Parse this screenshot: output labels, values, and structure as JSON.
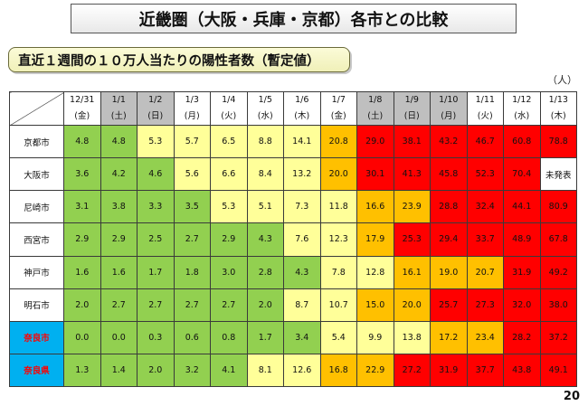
{
  "title": "近畿圏（大阪・兵庫・京都）各市との比較",
  "subtitle": "直近１週間の１０万人当たりの陽性者数（暫定値）",
  "unit": "（人）",
  "page_number": "20",
  "colors": {
    "green": "#92d050",
    "light_yellow": "#ffff99",
    "orange": "#ffc000",
    "red": "#ff0000",
    "nara_bg": "#00b0f0",
    "header_grey": "#bfbfbf"
  },
  "dates": [
    {
      "date": "12/31",
      "day": "(金)",
      "shade": "white"
    },
    {
      "date": "1/1",
      "day": "(土)",
      "shade": "grey"
    },
    {
      "date": "1/2",
      "day": "(日)",
      "shade": "grey"
    },
    {
      "date": "1/3",
      "day": "(月)",
      "shade": "white"
    },
    {
      "date": "1/4",
      "day": "(火)",
      "shade": "white"
    },
    {
      "date": "1/5",
      "day": "(水)",
      "shade": "white"
    },
    {
      "date": "1/6",
      "day": "(木)",
      "shade": "white"
    },
    {
      "date": "1/7",
      "day": "(金)",
      "shade": "white"
    },
    {
      "date": "1/8",
      "day": "(土)",
      "shade": "grey"
    },
    {
      "date": "1/9",
      "day": "(日)",
      "shade": "grey"
    },
    {
      "date": "1/10",
      "day": "(月)",
      "shade": "grey"
    },
    {
      "date": "1/11",
      "day": "(火)",
      "shade": "white"
    },
    {
      "date": "1/12",
      "day": "(水)",
      "shade": "white"
    },
    {
      "date": "1/13",
      "day": "(木)",
      "shade": "white"
    }
  ],
  "rows": [
    {
      "city": "京都市",
      "nara": false,
      "cells": [
        {
          "v": "4.8",
          "c": "g"
        },
        {
          "v": "4.8",
          "c": "g"
        },
        {
          "v": "5.3",
          "c": "y"
        },
        {
          "v": "5.7",
          "c": "y"
        },
        {
          "v": "6.5",
          "c": "y"
        },
        {
          "v": "8.8",
          "c": "y"
        },
        {
          "v": "14.1",
          "c": "y"
        },
        {
          "v": "20.8",
          "c": "o"
        },
        {
          "v": "29.0",
          "c": "r"
        },
        {
          "v": "38.1",
          "c": "r"
        },
        {
          "v": "43.2",
          "c": "r"
        },
        {
          "v": "46.7",
          "c": "r"
        },
        {
          "v": "60.8",
          "c": "r"
        },
        {
          "v": "78.8",
          "c": "r"
        }
      ]
    },
    {
      "city": "大阪市",
      "nara": false,
      "cells": [
        {
          "v": "3.6",
          "c": "g"
        },
        {
          "v": "4.2",
          "c": "g"
        },
        {
          "v": "4.6",
          "c": "g"
        },
        {
          "v": "5.6",
          "c": "y"
        },
        {
          "v": "6.6",
          "c": "y"
        },
        {
          "v": "8.4",
          "c": "y"
        },
        {
          "v": "13.2",
          "c": "y"
        },
        {
          "v": "20.0",
          "c": "o"
        },
        {
          "v": "30.1",
          "c": "r"
        },
        {
          "v": "41.3",
          "c": "r"
        },
        {
          "v": "45.8",
          "c": "r"
        },
        {
          "v": "52.3",
          "c": "r"
        },
        {
          "v": "70.4",
          "c": "r"
        },
        {
          "v": "未発表",
          "c": "w"
        }
      ]
    },
    {
      "city": "尼崎市",
      "nara": false,
      "cells": [
        {
          "v": "3.1",
          "c": "g"
        },
        {
          "v": "3.8",
          "c": "g"
        },
        {
          "v": "3.3",
          "c": "g"
        },
        {
          "v": "3.5",
          "c": "g"
        },
        {
          "v": "5.3",
          "c": "y"
        },
        {
          "v": "5.1",
          "c": "y"
        },
        {
          "v": "7.3",
          "c": "y"
        },
        {
          "v": "11.8",
          "c": "y"
        },
        {
          "v": "16.6",
          "c": "o"
        },
        {
          "v": "23.9",
          "c": "o"
        },
        {
          "v": "28.8",
          "c": "r"
        },
        {
          "v": "32.4",
          "c": "r"
        },
        {
          "v": "44.1",
          "c": "r"
        },
        {
          "v": "80.9",
          "c": "r"
        }
      ]
    },
    {
      "city": "西宮市",
      "nara": false,
      "cells": [
        {
          "v": "2.9",
          "c": "g"
        },
        {
          "v": "2.9",
          "c": "g"
        },
        {
          "v": "2.5",
          "c": "g"
        },
        {
          "v": "2.7",
          "c": "g"
        },
        {
          "v": "2.9",
          "c": "g"
        },
        {
          "v": "4.3",
          "c": "g"
        },
        {
          "v": "7.6",
          "c": "y"
        },
        {
          "v": "12.3",
          "c": "y"
        },
        {
          "v": "17.9",
          "c": "o"
        },
        {
          "v": "25.3",
          "c": "r"
        },
        {
          "v": "29.4",
          "c": "r"
        },
        {
          "v": "33.7",
          "c": "r"
        },
        {
          "v": "48.9",
          "c": "r"
        },
        {
          "v": "67.8",
          "c": "r"
        }
      ]
    },
    {
      "city": "神戸市",
      "nara": false,
      "cells": [
        {
          "v": "1.6",
          "c": "g"
        },
        {
          "v": "1.6",
          "c": "g"
        },
        {
          "v": "1.7",
          "c": "g"
        },
        {
          "v": "1.8",
          "c": "g"
        },
        {
          "v": "3.0",
          "c": "g"
        },
        {
          "v": "2.8",
          "c": "g"
        },
        {
          "v": "4.3",
          "c": "g"
        },
        {
          "v": "7.8",
          "c": "y"
        },
        {
          "v": "12.8",
          "c": "y"
        },
        {
          "v": "16.1",
          "c": "o"
        },
        {
          "v": "19.0",
          "c": "o"
        },
        {
          "v": "20.7",
          "c": "o"
        },
        {
          "v": "31.9",
          "c": "r"
        },
        {
          "v": "49.2",
          "c": "r"
        }
      ]
    },
    {
      "city": "明石市",
      "nara": false,
      "cells": [
        {
          "v": "2.0",
          "c": "g"
        },
        {
          "v": "2.7",
          "c": "g"
        },
        {
          "v": "2.7",
          "c": "g"
        },
        {
          "v": "2.7",
          "c": "g"
        },
        {
          "v": "2.7",
          "c": "g"
        },
        {
          "v": "2.0",
          "c": "g"
        },
        {
          "v": "8.7",
          "c": "y"
        },
        {
          "v": "10.7",
          "c": "y"
        },
        {
          "v": "15.0",
          "c": "o"
        },
        {
          "v": "20.0",
          "c": "o"
        },
        {
          "v": "25.7",
          "c": "r"
        },
        {
          "v": "27.3",
          "c": "r"
        },
        {
          "v": "32.0",
          "c": "r"
        },
        {
          "v": "38.0",
          "c": "r"
        }
      ]
    },
    {
      "city": "奈良市",
      "nara": true,
      "cells": [
        {
          "v": "0.0",
          "c": "g"
        },
        {
          "v": "0.0",
          "c": "g"
        },
        {
          "v": "0.3",
          "c": "g"
        },
        {
          "v": "0.6",
          "c": "g"
        },
        {
          "v": "0.8",
          "c": "g"
        },
        {
          "v": "1.7",
          "c": "g"
        },
        {
          "v": "3.4",
          "c": "g"
        },
        {
          "v": "5.4",
          "c": "y"
        },
        {
          "v": "9.9",
          "c": "y"
        },
        {
          "v": "13.8",
          "c": "y"
        },
        {
          "v": "17.2",
          "c": "o"
        },
        {
          "v": "23.4",
          "c": "o"
        },
        {
          "v": "28.2",
          "c": "r"
        },
        {
          "v": "37.2",
          "c": "r"
        }
      ]
    },
    {
      "city": "奈良県",
      "nara": true,
      "cells": [
        {
          "v": "1.3",
          "c": "g"
        },
        {
          "v": "1.4",
          "c": "g"
        },
        {
          "v": "2.0",
          "c": "g"
        },
        {
          "v": "3.2",
          "c": "g"
        },
        {
          "v": "4.1",
          "c": "g"
        },
        {
          "v": "8.1",
          "c": "y"
        },
        {
          "v": "12.6",
          "c": "y"
        },
        {
          "v": "16.8",
          "c": "o"
        },
        {
          "v": "22.9",
          "c": "o"
        },
        {
          "v": "27.2",
          "c": "r"
        },
        {
          "v": "31.9",
          "c": "r"
        },
        {
          "v": "37.7",
          "c": "r"
        },
        {
          "v": "43.8",
          "c": "r"
        },
        {
          "v": "49.1",
          "c": "r"
        }
      ]
    }
  ]
}
